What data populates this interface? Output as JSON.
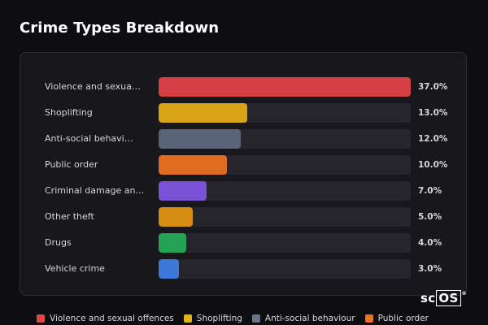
{
  "page": {
    "title": "Crime Types Breakdown",
    "brand": "scOS",
    "brand_mark": "®"
  },
  "chart_data": {
    "type": "bar",
    "orientation": "horizontal",
    "title": "Crime Types Breakdown",
    "xlim": [
      0,
      37
    ],
    "value_suffix": "%",
    "categories": [
      "Violence and sexua…",
      "Shoplifting",
      "Anti-social behavi…",
      "Public order",
      "Criminal damage an…",
      "Other theft",
      "Drugs",
      "Vehicle crime"
    ],
    "values": [
      37.0,
      13.0,
      12.0,
      10.0,
      7.0,
      5.0,
      4.0,
      3.0
    ],
    "value_labels": [
      "37.0%",
      "13.0%",
      "12.0%",
      "10.0%",
      "7.0%",
      "5.0%",
      "4.0%",
      "3.0%"
    ],
    "colors": [
      "#d64045",
      "#d9a417",
      "#5a6478",
      "#de6b1f",
      "#7a52d6",
      "#d68d14",
      "#25a355",
      "#3c78d8"
    ]
  },
  "legend": [
    {
      "label": "Violence and sexual offences",
      "color": "#e04848"
    },
    {
      "label": "Shoplifting",
      "color": "#e6b21a"
    },
    {
      "label": "Anti-social behaviour",
      "color": "#6a7286"
    },
    {
      "label": "Public order",
      "color": "#ea7424"
    }
  ]
}
